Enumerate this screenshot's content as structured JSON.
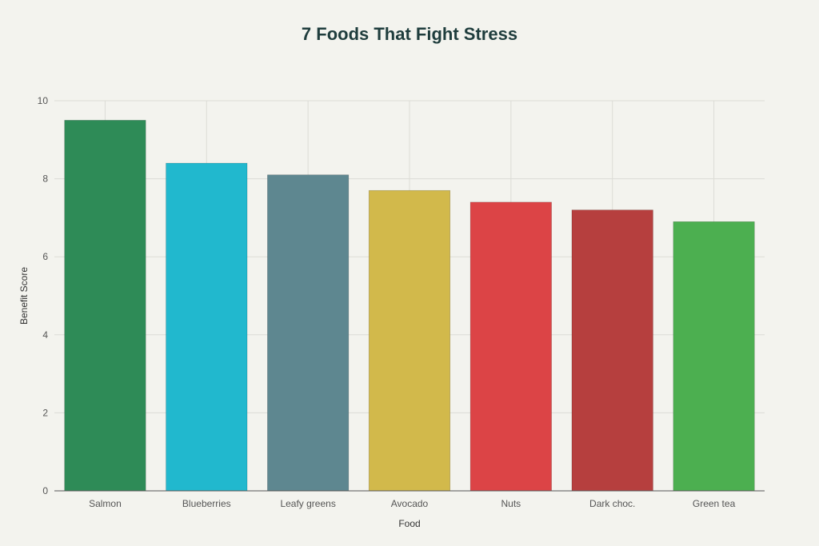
{
  "chart_data": {
    "type": "bar",
    "title": "7 Foods That Fight Stress",
    "xlabel": "Food",
    "ylabel": "Benefit Score",
    "categories": [
      "Salmon",
      "Blueberries",
      "Leafy greens",
      "Avocado",
      "Nuts",
      "Dark choc.",
      "Green tea"
    ],
    "values": [
      9.5,
      8.4,
      8.1,
      7.7,
      7.4,
      7.2,
      6.9
    ],
    "colors": [
      "#2e8b57",
      "#21b8ce",
      "#5e8790",
      "#d2b94b",
      "#dc4446",
      "#b63f3e",
      "#4caf50"
    ],
    "ylim": [
      0,
      10
    ],
    "yticks": [
      0,
      2,
      4,
      6,
      8,
      10
    ],
    "grid": true,
    "legend": false
  }
}
